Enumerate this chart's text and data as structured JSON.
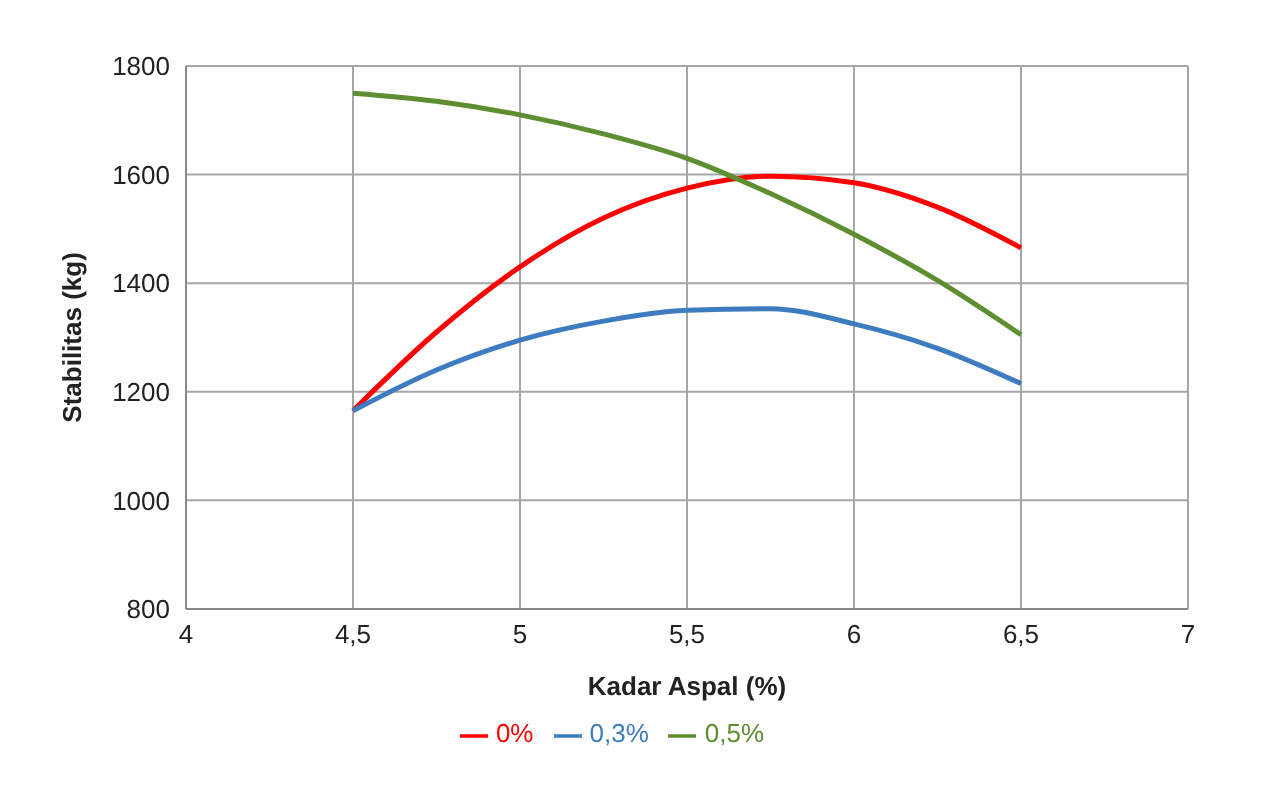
{
  "chart_data": {
    "type": "line",
    "xlabel": "Kadar Aspal (%)",
    "ylabel": "Stabilitas (kg)",
    "x": [
      4.5,
      4.75,
      5,
      5.25,
      5.5,
      5.75,
      6,
      6.25,
      6.5
    ],
    "series": [
      {
        "name": "0%",
        "color": "#ff0000",
        "values": [
          1165,
          1310,
          1430,
          1520,
          1575,
          1597,
          1585,
          1540,
          1465
        ]
      },
      {
        "name": "0,3%",
        "color": "#3d7cc0",
        "values": [
          1165,
          1240,
          1295,
          1330,
          1350,
          1353,
          1325,
          1280,
          1215
        ]
      },
      {
        "name": "0,5%",
        "color": "#5e8e32",
        "values": [
          1750,
          1735,
          1710,
          1675,
          1630,
          1565,
          1490,
          1405,
          1305
        ]
      }
    ],
    "xlim": [
      4,
      7
    ],
    "xticks": [
      4,
      {
        "value": 4.5,
        "label": "4,5"
      },
      5,
      {
        "value": 5.5,
        "label": "5,5"
      },
      6,
      {
        "value": 6.5,
        "label": "6,5"
      },
      7
    ],
    "ylim": [
      800,
      1800
    ],
    "yticks": [
      800,
      1000,
      1200,
      1400,
      1600,
      1800
    ],
    "grid": true,
    "legend": "bottom",
    "marker": "none",
    "line_style": "solid"
  }
}
